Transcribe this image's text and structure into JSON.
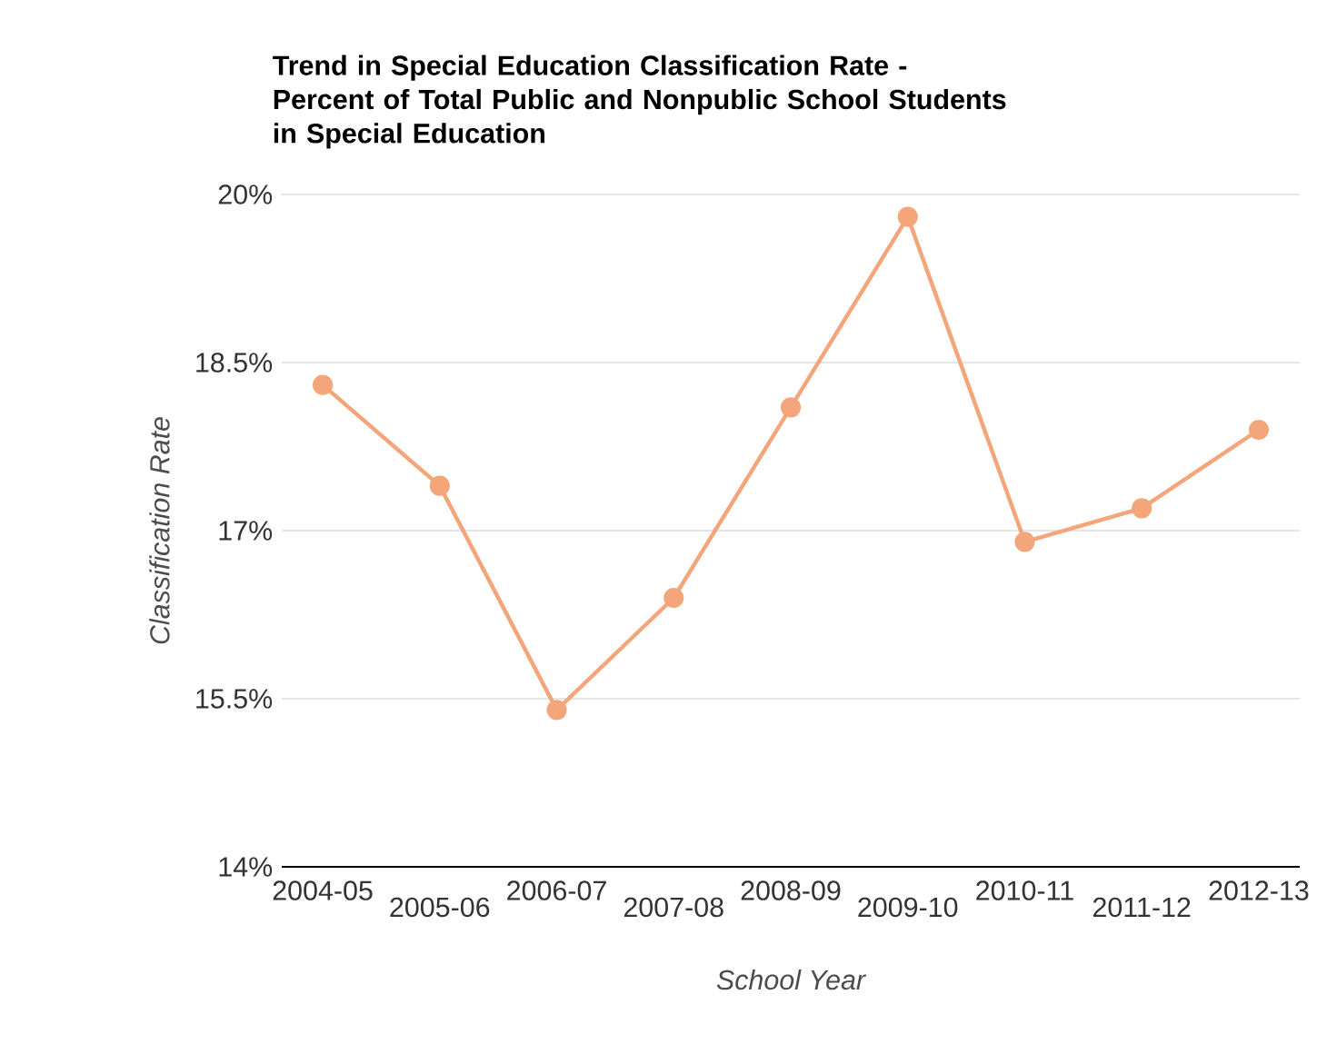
{
  "chart_data": {
    "type": "line",
    "title": "Trend in Special Education Classification Rate - Percent of Total Public and Nonpublic School Students in Special Education",
    "xlabel": "School Year",
    "ylabel": "Classification Rate",
    "categories": [
      "2004-05",
      "2005-06",
      "2006-07",
      "2007-08",
      "2008-09",
      "2009-10",
      "2010-11",
      "2011-12",
      "2012-13"
    ],
    "series": [
      {
        "color": "#f4a57a",
        "values": [
          18.3,
          17.4,
          15.4,
          16.4,
          18.1,
          19.8,
          16.9,
          17.2,
          17.9
        ]
      }
    ],
    "ylim": [
      14,
      20
    ],
    "yticks": [
      {
        "value": 14,
        "label": "14%"
      },
      {
        "value": 15.5,
        "label": "15.5%"
      },
      {
        "value": 17,
        "label": "17%"
      },
      {
        "value": 18.5,
        "label": "18.5%"
      },
      {
        "value": 20,
        "label": "20%"
      }
    ],
    "grid": "y",
    "marker": "circle",
    "line_style": "solid"
  }
}
